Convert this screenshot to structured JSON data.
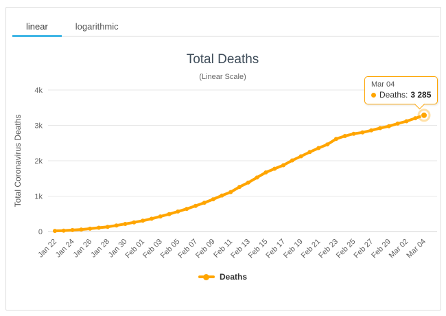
{
  "tabs": {
    "items": [
      {
        "label": "linear",
        "active": true
      },
      {
        "label": "logarithmic",
        "active": false
      }
    ]
  },
  "header": {
    "title": "Total Deaths",
    "subtitle": "(Linear Scale)"
  },
  "tooltip": {
    "date": "Mar 04",
    "series_label": "Deaths:",
    "value": "3 285"
  },
  "legend": {
    "items": [
      {
        "label": "Deaths",
        "color": "#FFA500"
      }
    ]
  },
  "colors": {
    "series": "#FFA500",
    "tab_active_underline": "#41B6E6",
    "grid": "#E7E7E7",
    "axis_line": "#D3D3D3",
    "axis_label": "#606060",
    "title": "#3E4C59"
  },
  "chart_data": {
    "type": "line",
    "title": "Total Deaths",
    "subtitle": "(Linear Scale)",
    "xlabel": "",
    "ylabel": "Total Coronavirus Deaths",
    "ylim": [
      0,
      4000
    ],
    "ytick_labels": [
      "0",
      "1k",
      "2k",
      "3k",
      "4k"
    ],
    "x_tick_step": 2,
    "grid": true,
    "legend_position": "bottom",
    "x": [
      "Jan 22",
      "Jan 23",
      "Jan 24",
      "Jan 25",
      "Jan 26",
      "Jan 27",
      "Jan 28",
      "Jan 29",
      "Jan 30",
      "Jan 31",
      "Feb 01",
      "Feb 02",
      "Feb 03",
      "Feb 04",
      "Feb 05",
      "Feb 06",
      "Feb 07",
      "Feb 08",
      "Feb 09",
      "Feb 10",
      "Feb 11",
      "Feb 12",
      "Feb 13",
      "Feb 14",
      "Feb 15",
      "Feb 16",
      "Feb 17",
      "Feb 18",
      "Feb 19",
      "Feb 20",
      "Feb 21",
      "Feb 22",
      "Feb 23",
      "Feb 24",
      "Feb 25",
      "Feb 26",
      "Feb 27",
      "Feb 28",
      "Feb 29",
      "Mar 01",
      "Mar 02",
      "Mar 03",
      "Mar 04"
    ],
    "series": [
      {
        "name": "Deaths",
        "color": "#FFA500",
        "values": [
          17,
          25,
          41,
          56,
          80,
          106,
          132,
          170,
          213,
          259,
          304,
          362,
          426,
          492,
          565,
          638,
          724,
          813,
          910,
          1018,
          1115,
          1261,
          1383,
          1526,
          1669,
          1775,
          1873,
          2009,
          2126,
          2247,
          2360,
          2460,
          2618,
          2699,
          2763,
          2800,
          2858,
          2923,
          2977,
          3050,
          3117,
          3202,
          3285
        ]
      }
    ],
    "highlighted_point": {
      "x": "Mar 04",
      "value": 3285
    }
  }
}
